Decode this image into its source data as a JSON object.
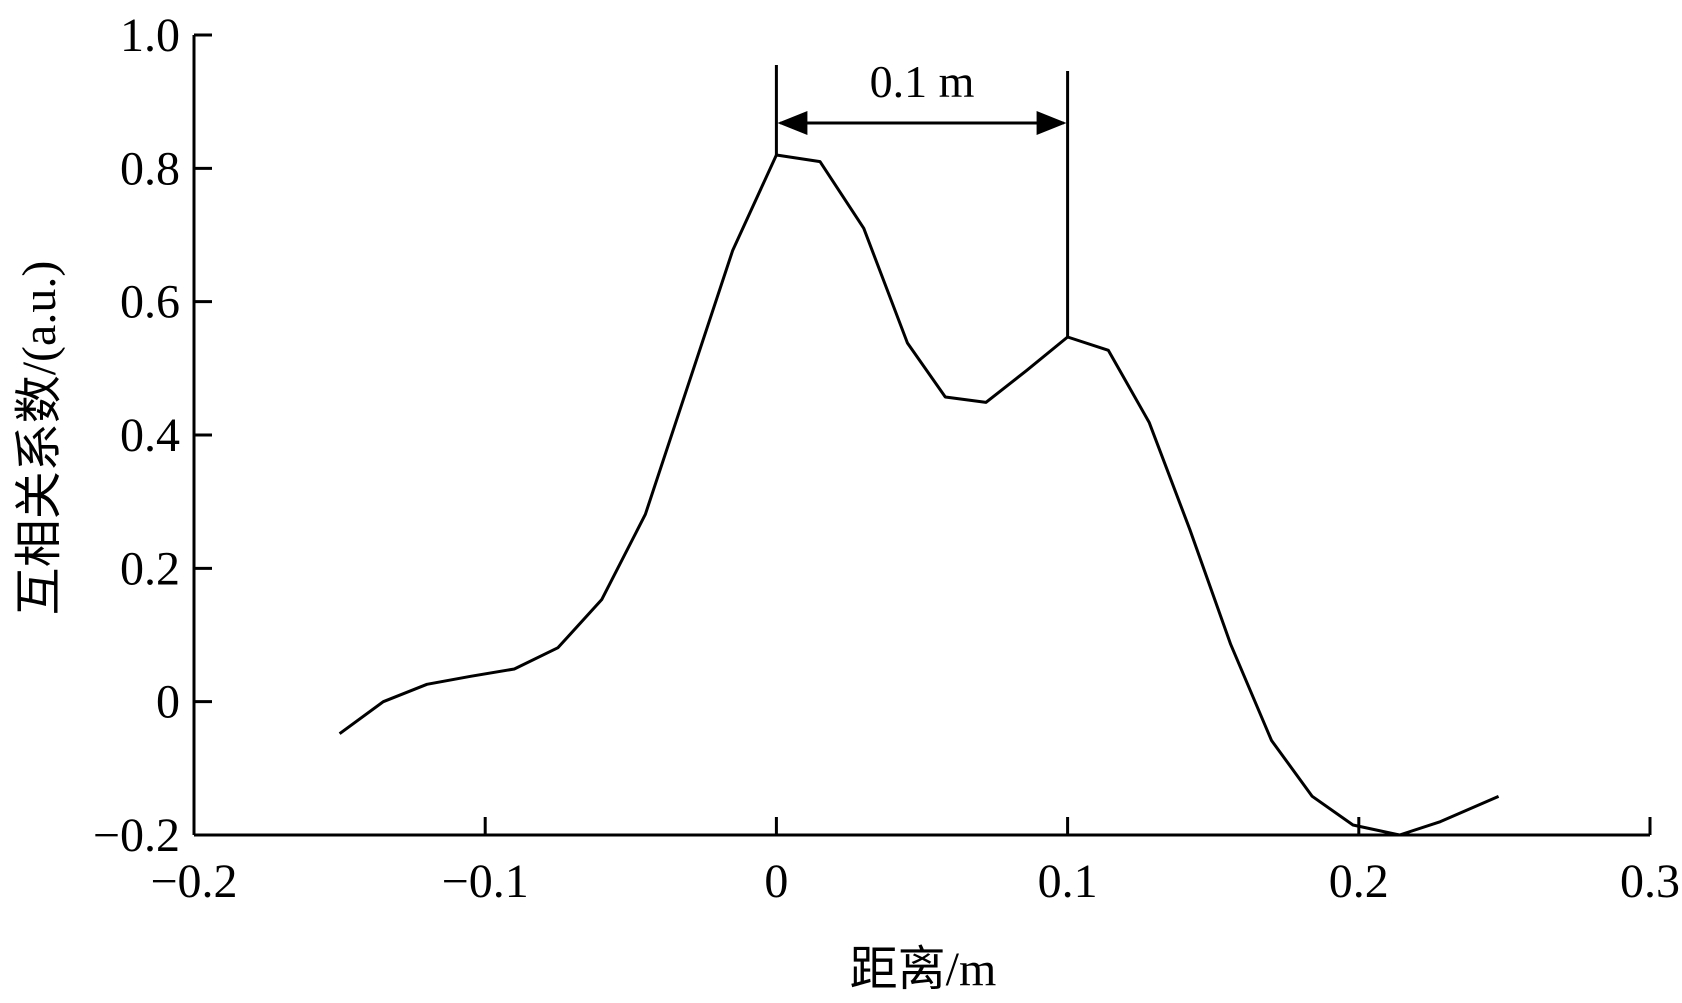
{
  "chart_data": {
    "type": "line",
    "xlabel": "距离/m",
    "ylabel": "互相关系数/(a.u.)",
    "xlim": [
      -0.2,
      0.3
    ],
    "ylim": [
      -0.2,
      1.0
    ],
    "x_ticks": [
      -0.2,
      -0.1,
      0,
      0.1,
      0.2,
      0.3
    ],
    "x_tick_labels": [
      "−0.2",
      "−0.1",
      "0",
      "0.1",
      "0.2",
      "0.3"
    ],
    "y_ticks": [
      -0.2,
      0,
      0.2,
      0.4,
      0.6,
      0.8,
      1.0
    ],
    "y_tick_labels": [
      "−0.2",
      "0",
      "0.2",
      "0.4",
      "0.6",
      "0.8",
      "1.0"
    ],
    "grid": false,
    "legend": "none",
    "series": [
      {
        "x": [
          -0.15,
          -0.135,
          -0.12,
          -0.105,
          -0.09,
          -0.075,
          -0.06,
          -0.045,
          -0.03,
          -0.015,
          0.0,
          0.015,
          0.03,
          0.045,
          0.058,
          0.072,
          0.086,
          0.1,
          0.114,
          0.128,
          0.142,
          0.156,
          0.17,
          0.184,
          0.198,
          0.214,
          0.228,
          0.248
        ],
        "y": [
          -0.048,
          0.0,
          0.026,
          0.038,
          0.049,
          0.081,
          0.153,
          0.281,
          0.479,
          0.677,
          0.82,
          0.81,
          0.71,
          0.538,
          0.457,
          0.449,
          0.497,
          0.547,
          0.527,
          0.419,
          0.258,
          0.086,
          -0.058,
          -0.142,
          -0.185,
          -0.2,
          -0.18,
          -0.142
        ]
      }
    ],
    "annotation": {
      "text": "0.1 m",
      "x_start": 0,
      "x_end": 0.1,
      "arrow_y": 0.868
    }
  }
}
